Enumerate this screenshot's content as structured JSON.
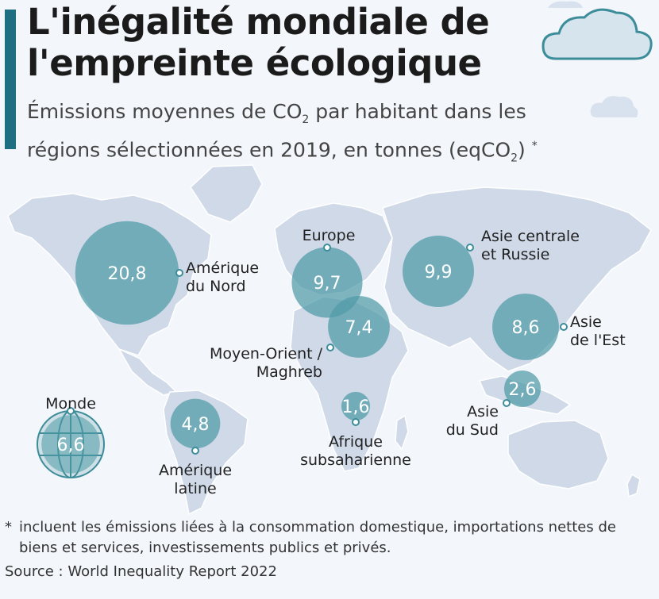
{
  "title_line1": "L'inégalité mondiale de",
  "title_line2": "l'empreinte écologique",
  "subtitle": {
    "part1": "Émissions moyennes de CO",
    "sub1": "2",
    "part2": " par habitant dans les",
    "part3": "régions sélectionnées en 2019, en tonnes (eqCO",
    "sub2": "2",
    "part4": ") ",
    "star": "*"
  },
  "colors": {
    "accent": "#1f6f82",
    "bubble": "#4f9aa6",
    "map_land": "#cfd9e8",
    "background": "#f3f6fb"
  },
  "chart_data": {
    "type": "bubble-map",
    "unit": "tonnes (eqCO2)",
    "regions": [
      {
        "name": "Amérique du Nord",
        "label_lines": [
          "Amérique",
          "du Nord"
        ],
        "value": 20.8,
        "value_label": "20,8"
      },
      {
        "name": "Europe",
        "label_lines": [
          "Europe"
        ],
        "value": 9.7,
        "value_label": "9,7"
      },
      {
        "name": "Asie centrale et Russie",
        "label_lines": [
          "Asie centrale",
          "et Russie"
        ],
        "value": 9.9,
        "value_label": "9,9"
      },
      {
        "name": "Moyen-Orient / Maghreb",
        "label_lines": [
          "Moyen-Orient /",
          "Maghreb"
        ],
        "value": 7.4,
        "value_label": "7,4"
      },
      {
        "name": "Asie de l'Est",
        "label_lines": [
          "Asie",
          "de l'Est"
        ],
        "value": 8.6,
        "value_label": "8,6"
      },
      {
        "name": "Asie du Sud",
        "label_lines": [
          "Asie",
          "du Sud"
        ],
        "value": 2.6,
        "value_label": "2,6"
      },
      {
        "name": "Afrique subsaharienne",
        "label_lines": [
          "Afrique",
          "subsaharienne"
        ],
        "value": 1.6,
        "value_label": "1,6"
      },
      {
        "name": "Amérique latine",
        "label_lines": [
          "Amérique",
          "latine"
        ],
        "value": 4.8,
        "value_label": "4,8"
      },
      {
        "name": "Monde",
        "label_lines": [
          "Monde"
        ],
        "value": 6.6,
        "value_label": "6,6"
      }
    ]
  },
  "footnote": {
    "star": "*",
    "text": "incluent les émissions liées à la consommation domestique, importations nettes de biens et services, investissements publics et privés."
  },
  "source": "Source : World Inequality Report 2022"
}
